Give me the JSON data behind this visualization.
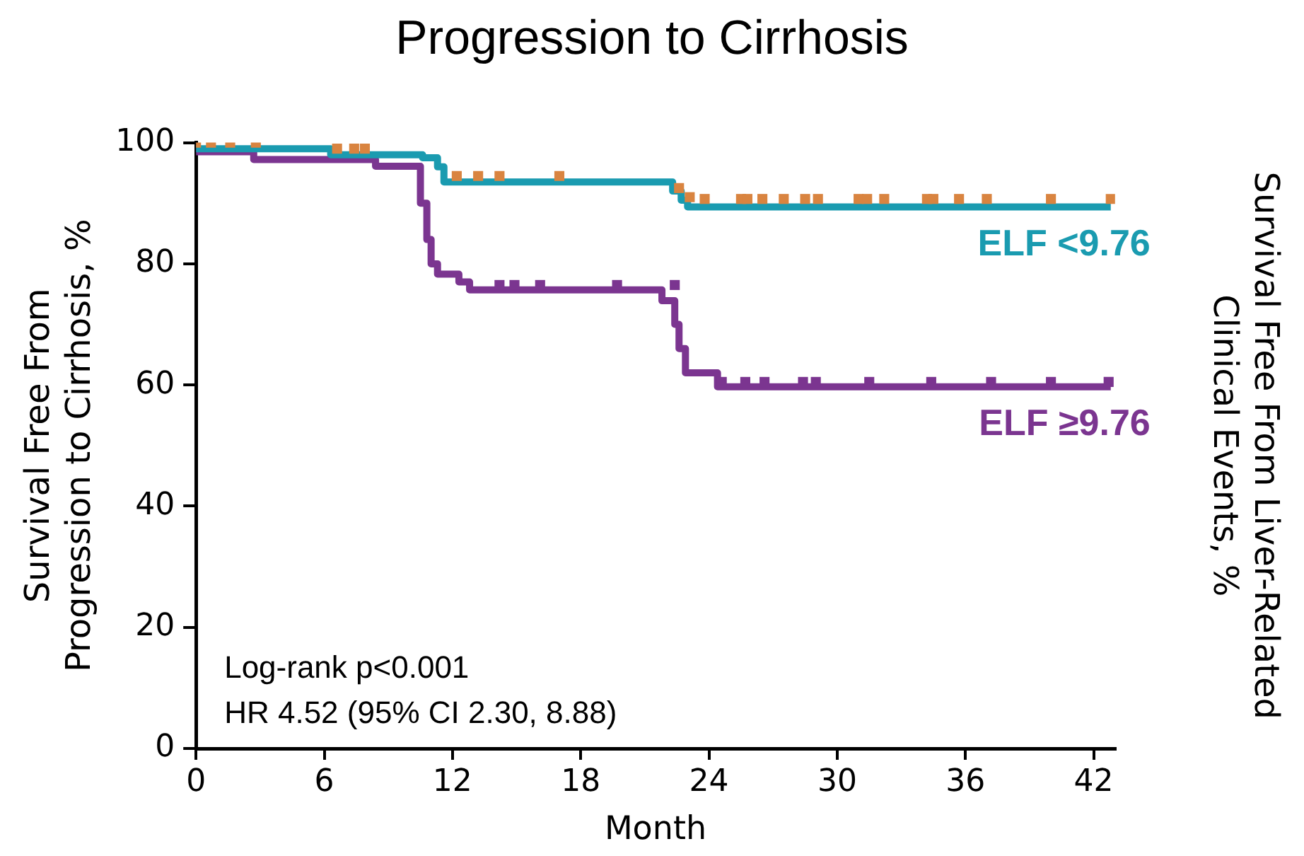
{
  "chart_data": {
    "type": "step",
    "title": "Progression to Cirrhosis",
    "xlabel": "Month",
    "ylabel": "Survival Free From\nProgression to Cirrhosis, %",
    "y2label": "Survival Free From Liver-Related\nClinical Events, %",
    "xlim": [
      0,
      43
    ],
    "xticks": [
      0,
      6,
      12,
      18,
      24,
      30,
      36,
      42
    ],
    "ylim": [
      0,
      100
    ],
    "yticks": [
      0,
      20,
      40,
      60,
      80,
      100
    ],
    "grid": false,
    "legend": false,
    "series": [
      {
        "name": "ELF <9.76",
        "color": "#1a9bb0",
        "x": [
          0,
          6.3,
          10.6,
          11.3,
          11.6,
          22.3,
          22.7,
          23,
          42.8
        ],
        "values": [
          99,
          98,
          97.5,
          96,
          93.5,
          92,
          90.5,
          89.4,
          89.4
        ]
      },
      {
        "name": "ELF ≥9.76",
        "color": "#7b3590",
        "x": [
          0,
          2.7,
          8.4,
          10.5,
          10.8,
          11,
          11.3,
          12.3,
          12.8,
          21.8,
          22.4,
          22.6,
          22.9,
          24.4,
          42.8
        ],
        "values": [
          98.5,
          97.2,
          96.1,
          90,
          84,
          80,
          78.3,
          77,
          75.7,
          73.9,
          70,
          66,
          62,
          59.7,
          59.7
        ]
      },
      {
        "type": "scatter",
        "marker": "square",
        "color": "#d98440",
        "x": [
          0,
          0.7,
          1.6,
          2.8,
          6.6,
          7.4,
          7.9,
          12.2,
          13.2,
          14.2,
          17,
          22.6,
          23.1,
          23.8,
          25.5,
          25.8,
          26.5,
          27.5,
          28.5,
          29.1,
          31,
          31.4,
          32.2,
          34.2,
          34.5,
          35.7,
          37,
          40,
          42.8
        ],
        "values": [
          100,
          100,
          100,
          100,
          99,
          99,
          99,
          94.5,
          94.5,
          94.5,
          94.5,
          92.5,
          91,
          90.7,
          90.7,
          90.7,
          90.7,
          90.7,
          90.7,
          90.7,
          90.7,
          90.7,
          90.7,
          90.7,
          90.7,
          90.7,
          90.7,
          90.7,
          90.7
        ]
      },
      {
        "type": "scatter",
        "marker": "square",
        "color": "#7b3590",
        "x": [
          14.2,
          14.9,
          16.1,
          19.7,
          22.4,
          24.6,
          25.7,
          26.6,
          28.4,
          29,
          31.5,
          34.4,
          37.2,
          40,
          42.7
        ],
        "values": [
          76.5,
          76.5,
          76.5,
          76.5,
          76.5,
          60.5,
          60.5,
          60.5,
          60.5,
          60.5,
          60.5,
          60.5,
          60.5,
          60.5,
          60.5
        ]
      }
    ],
    "annotations": [
      "Log-rank p<0.001",
      "HR 4.52 (95% CI 2.30, 8.88)"
    ]
  }
}
